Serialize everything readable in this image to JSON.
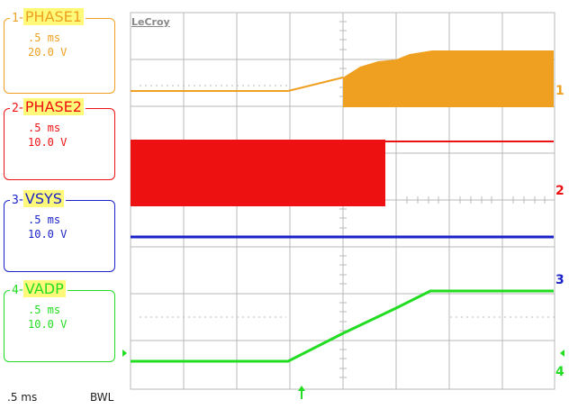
{
  "brand": "LeCroy",
  "channels": [
    {
      "num": "1",
      "name": "PHASE1",
      "timebase": ".5 ms",
      "scale": "20.0 V",
      "color": "#f0a020",
      "marker": "1"
    },
    {
      "num": "2",
      "name": "PHASE2",
      "timebase": ".5 ms",
      "scale": "10.0 V",
      "color": "#ee1111",
      "marker": "2"
    },
    {
      "num": "3",
      "name": "VSYS",
      "timebase": ".5 ms",
      "scale": "10.0 V",
      "color": "#1a22c8",
      "marker": "3"
    },
    {
      "num": "4",
      "name": "VADP",
      "timebase": ".5 ms",
      "scale": "10.0 V",
      "color": "#22dd22",
      "marker": "4"
    }
  ],
  "footer": {
    "timebase": ".5 ms",
    "bandwidth": "BWL"
  },
  "trigger_color": "#22dd22",
  "grid_color": "#b8b8b8"
}
